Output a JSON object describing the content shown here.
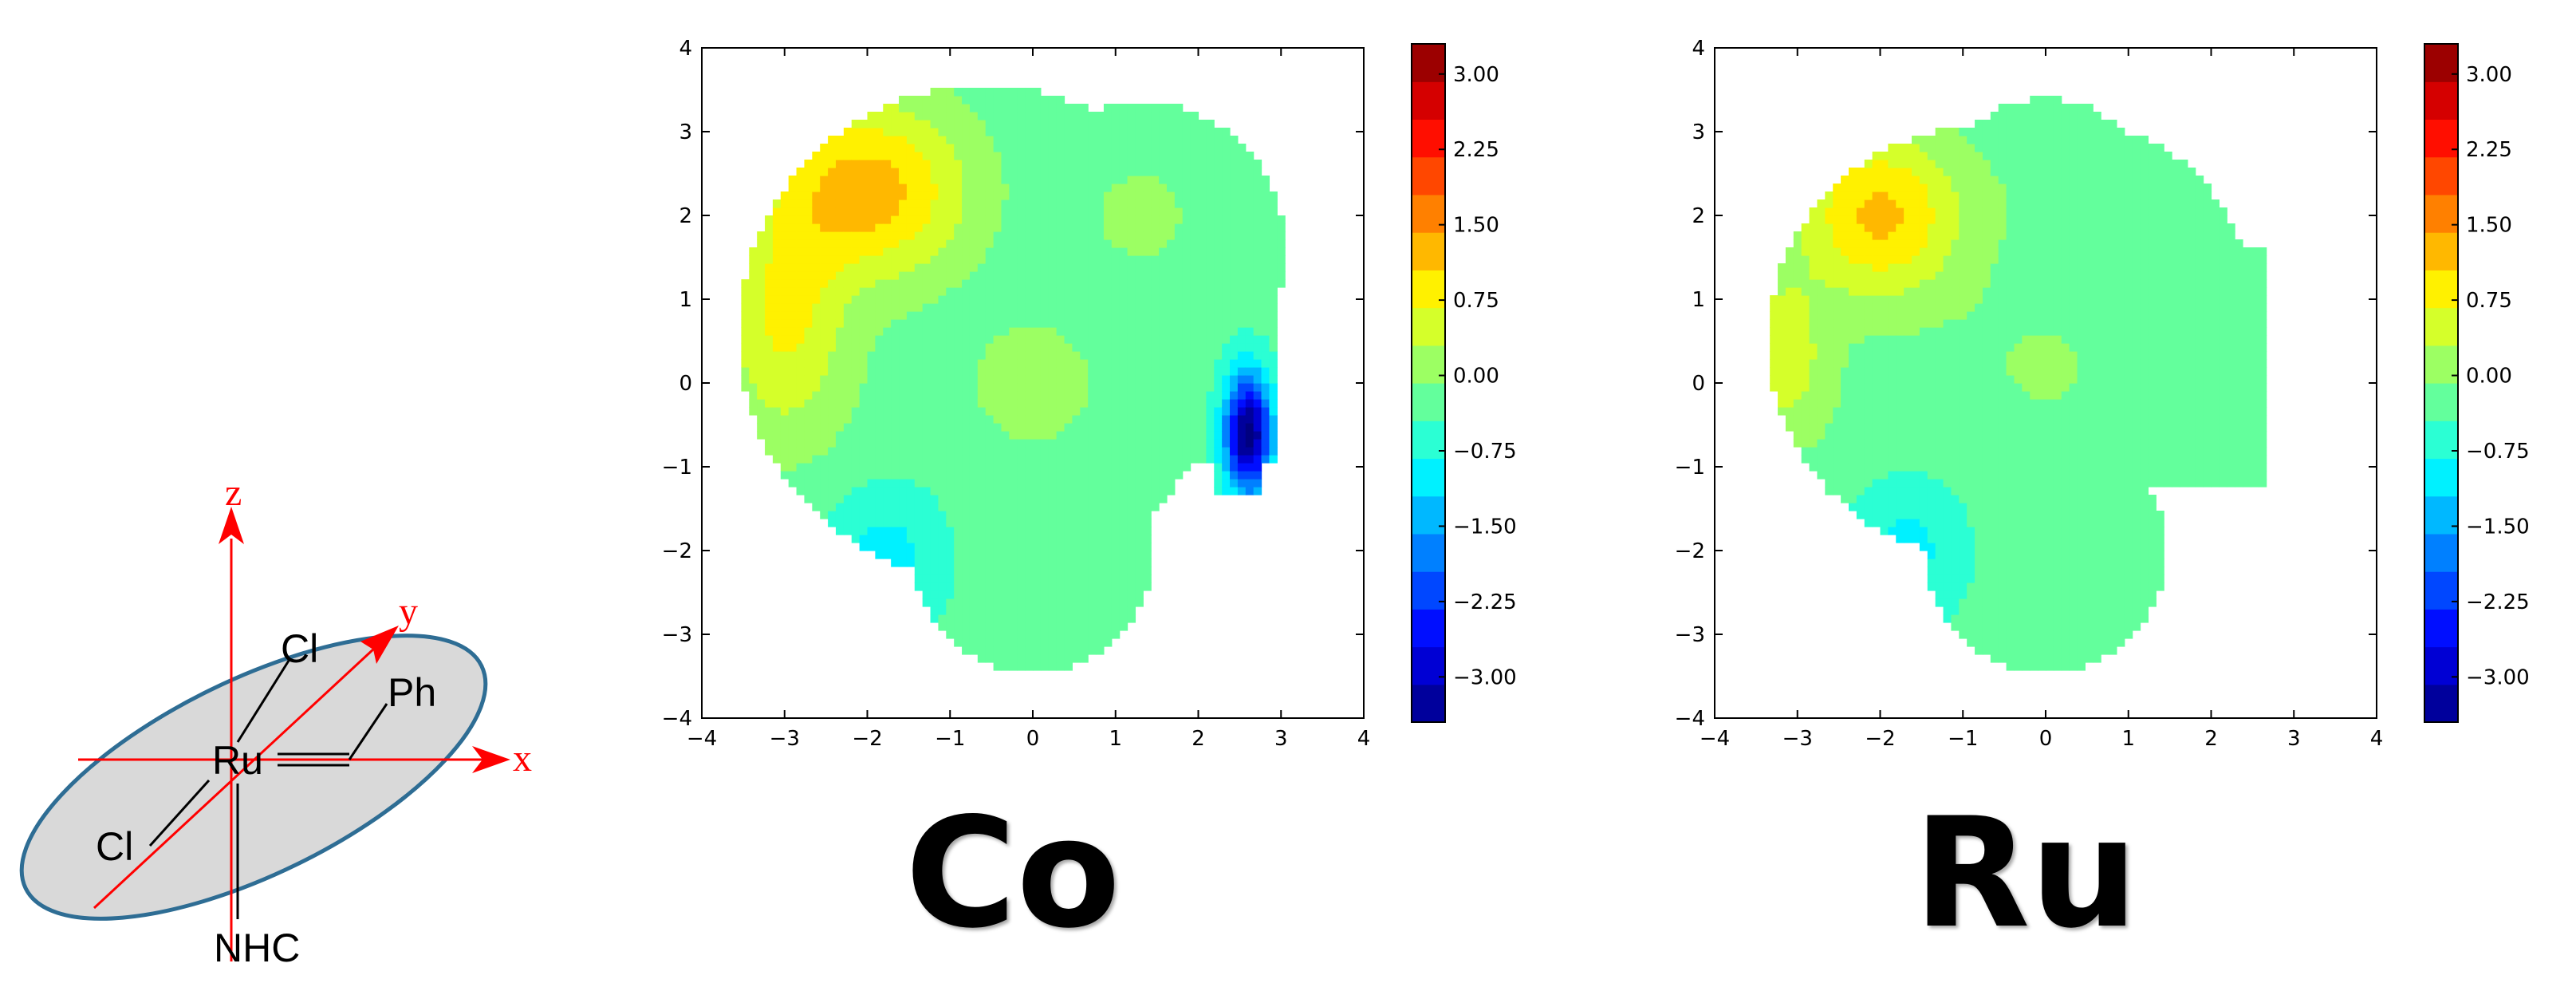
{
  "scheme": {
    "axis_labels": [
      "z",
      "y",
      "x"
    ],
    "atoms": [
      "Ru",
      "Cl",
      "Cl",
      "Ph",
      "NHC"
    ],
    "axis_color": "#ff0000",
    "ellipse_fill": "#d9d9d9",
    "ellipse_stroke": "#2e6d94"
  },
  "chart_data": [
    {
      "type": "contour",
      "label": "Co",
      "xlim": [
        -4,
        4
      ],
      "ylim": [
        -4,
        4
      ],
      "xticks": [
        -4,
        -3,
        -2,
        -1,
        0,
        1,
        2,
        3,
        4
      ],
      "yticks": [
        -4,
        -3,
        -2,
        -1,
        0,
        1,
        2,
        3,
        4
      ],
      "colorbar": {
        "range": [
          -3.45,
          3.3
        ],
        "ticks": [
          3.0,
          2.25,
          1.5,
          0.75,
          0.0,
          -0.75,
          -1.5,
          -2.25,
          -3.0
        ],
        "tick_labels": [
          "3.00",
          "2.25",
          "1.50",
          "0.75",
          "0.00",
          "−0.75",
          "−1.50",
          "−2.25",
          "−3.00"
        ],
        "colormap": "jet"
      },
      "hills": [
        {
          "x": -2.0,
          "y": 2.3,
          "sx": 0.85,
          "sy": 0.75,
          "z": 1.55
        },
        {
          "x": -3.0,
          "y": 0.8,
          "sx": 0.5,
          "sy": 0.9,
          "z": 0.9
        },
        {
          "x": -2.9,
          "y": -0.2,
          "sx": 0.8,
          "sy": 0.8,
          "z": 0.2
        },
        {
          "x": 1.3,
          "y": 2.0,
          "sx": 0.5,
          "sy": 0.5,
          "z": 0.35
        },
        {
          "x": 0.0,
          "y": 0.0,
          "sx": 0.5,
          "sy": 0.5,
          "z": 0.55
        },
        {
          "x": 2.6,
          "y": -0.6,
          "sx": 0.2,
          "sy": 0.5,
          "z": -3.3
        },
        {
          "x": -1.8,
          "y": -2.1,
          "sx": 0.5,
          "sy": 0.6,
          "z": -0.7
        }
      ],
      "base": -0.3
    },
    {
      "type": "contour",
      "label": "Ru",
      "xlim": [
        -4,
        4
      ],
      "ylim": [
        -4,
        4
      ],
      "xticks": [
        -4,
        -3,
        -2,
        -1,
        0,
        1,
        2,
        3,
        4
      ],
      "yticks": [
        -4,
        -3,
        -2,
        -1,
        0,
        1,
        2,
        3,
        4
      ],
      "colorbar": {
        "range": [
          -3.45,
          3.3
        ],
        "ticks": [
          3.0,
          2.25,
          1.5,
          0.75,
          0.0,
          -0.75,
          -1.5,
          -2.25,
          -3.0
        ],
        "tick_labels": [
          "3.00",
          "2.25",
          "1.50",
          "0.75",
          "0.00",
          "−0.75",
          "−1.50",
          "−2.25",
          "−3.00"
        ],
        "colormap": "jet"
      },
      "hills": [
        {
          "x": -2.0,
          "y": 2.0,
          "sx": 0.7,
          "sy": 0.7,
          "z": 1.45
        },
        {
          "x": -3.2,
          "y": 0.4,
          "sx": 0.35,
          "sy": 0.6,
          "z": 0.8
        },
        {
          "x": -3.0,
          "y": -0.3,
          "sx": 0.7,
          "sy": 0.7,
          "z": 0.2
        },
        {
          "x": 0.0,
          "y": 0.2,
          "sx": 0.9,
          "sy": 0.8,
          "z": 0.25
        },
        {
          "x": 0.0,
          "y": 2.3,
          "sx": 0.5,
          "sy": 0.5,
          "z": 0.15
        },
        {
          "x": -1.7,
          "y": -2.0,
          "sx": 0.5,
          "sy": 0.6,
          "z": -0.65
        }
      ],
      "base": -0.3
    }
  ]
}
